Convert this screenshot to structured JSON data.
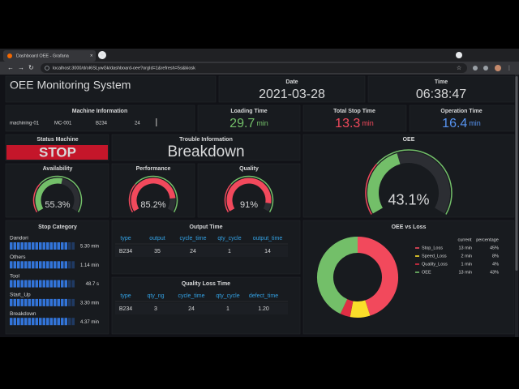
{
  "browser": {
    "tab_title": "Dashboard OEE - Grafana",
    "url": "localhost:3000/d/oI6SLywGk/dashboard-oee?orgId=1&refresh=5s&kiosk"
  },
  "dashboard": {
    "title": "OEE Monitoring System",
    "date": {
      "title": "Date",
      "value": "2021-03-28"
    },
    "time": {
      "title": "Time",
      "value": "06:38:47"
    },
    "machine_information": {
      "title": "Machine Information",
      "fields": [
        "machining-01",
        "MC-001",
        "B234",
        "24"
      ]
    },
    "loading_time": {
      "title": "Loading Time",
      "value": 29.7,
      "unit": "min",
      "color": "#73bf69"
    },
    "total_stop_time": {
      "title": "Total Stop Time",
      "value": 13.3,
      "unit": "min",
      "color": "#f2495c"
    },
    "operation_time": {
      "title": "Operation Time",
      "value": 16.4,
      "unit": "min",
      "color": "#5794f2"
    },
    "status_machine": {
      "title": "Status Machine",
      "value": "STOP"
    },
    "trouble_information": {
      "title": "Trouble Information",
      "value": "Breakdown"
    },
    "gauges": [
      {
        "title": "OEE",
        "value": 43.1,
        "label": "43.1%",
        "color": "#73bf69"
      },
      {
        "title": "Availability",
        "value": 55.3,
        "label": "55.3%",
        "color": "#73bf69"
      },
      {
        "title": "Performance",
        "value": 85.2,
        "label": "85.2%",
        "color": "#f2495c"
      },
      {
        "title": "Quality",
        "value": 91,
        "label": "91%",
        "color": "#f2495c"
      }
    ],
    "stop_category": {
      "title": "Stop Category",
      "items": [
        {
          "name": "Dandori",
          "value": "5.30 min"
        },
        {
          "name": "Others",
          "value": "1.14 min"
        },
        {
          "name": "Tool",
          "value": "48.7 s"
        },
        {
          "name": "Start_Up",
          "value": "3.30 min"
        },
        {
          "name": "Breakdown",
          "value": "4.37 min"
        }
      ]
    },
    "output_time": {
      "title": "Output Time",
      "columns": [
        "type",
        "output",
        "cycle_time",
        "qty_cycle",
        "output_time"
      ],
      "rows": [
        [
          "B234",
          35,
          24,
          1,
          14
        ]
      ]
    },
    "quality_loss_time": {
      "title": "Quality Loss Time",
      "columns": [
        "type",
        "qty_ng",
        "cycle_time",
        "qty_cycle",
        "defect_time"
      ],
      "rows": [
        [
          "B234",
          3,
          24,
          1,
          "1.20"
        ]
      ]
    },
    "oee_vs_loss": {
      "title": "OEE vs Loss",
      "columns": [
        "current",
        "percentage"
      ],
      "series": [
        {
          "name": "Stop_Loss",
          "color": "#f2495c",
          "current": "13 min",
          "percentage": 45,
          "label": "45%"
        },
        {
          "name": "Speed_Loss",
          "color": "#fade2a",
          "current": "2 min",
          "percentage": 8,
          "label": "8%"
        },
        {
          "name": "Quality_Loss",
          "color": "#e02f44",
          "current": "1 min",
          "percentage": 4,
          "label": "4%"
        },
        {
          "name": "OEE",
          "color": "#73bf69",
          "current": "13 min",
          "percentage": 43,
          "label": "43%"
        }
      ]
    }
  }
}
